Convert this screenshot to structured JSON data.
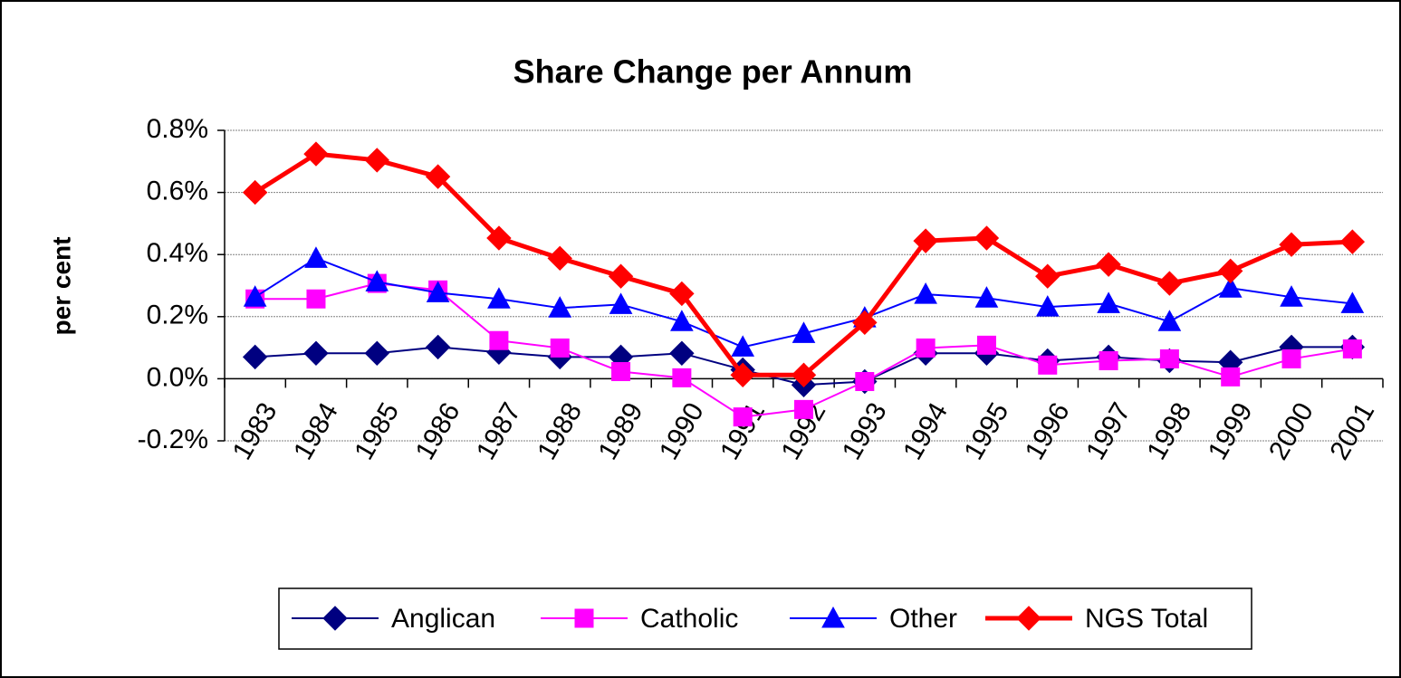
{
  "chart_data": {
    "type": "line",
    "title": "Share Change per Annum",
    "y_label": "per cent",
    "categories": [
      "1983",
      "1984",
      "1985",
      "1986",
      "1987",
      "1988",
      "1989",
      "1990",
      "1991",
      "1992",
      "1993",
      "1994",
      "1995",
      "1996",
      "1997",
      "1998",
      "1999",
      "2000",
      "2001"
    ],
    "series": [
      {
        "name": "Anglican",
        "color": "#000080",
        "marker": "diamond",
        "line_width": 2,
        "values": [
          0.07,
          0.082,
          0.082,
          0.102,
          0.085,
          0.07,
          0.07,
          0.082,
          0.029,
          -0.02,
          -0.009,
          0.082,
          0.082,
          0.058,
          0.07,
          0.058,
          0.053,
          0.102,
          0.102
        ]
      },
      {
        "name": "Catholic",
        "color": "#ff00ff",
        "marker": "square",
        "line_width": 2,
        "values": [
          0.257,
          0.257,
          0.307,
          0.286,
          0.123,
          0.099,
          0.023,
          0.003,
          -0.123,
          -0.099,
          -0.009,
          0.099,
          0.108,
          0.044,
          0.058,
          0.064,
          0.006,
          0.064,
          0.096
        ]
      },
      {
        "name": "Other",
        "color": "#0000ff",
        "marker": "triangle",
        "line_width": 2,
        "values": [
          0.263,
          0.388,
          0.312,
          0.277,
          0.257,
          0.228,
          0.239,
          0.184,
          0.102,
          0.146,
          0.196,
          0.272,
          0.26,
          0.231,
          0.242,
          0.184,
          0.292,
          0.263,
          0.242
        ]
      },
      {
        "name": "NGS Total",
        "color": "#ff0000",
        "marker": "diamond",
        "line_width": 5,
        "values": [
          0.6,
          0.724,
          0.704,
          0.651,
          0.453,
          0.388,
          0.33,
          0.274,
          0.012,
          0.012,
          0.181,
          0.444,
          0.453,
          0.33,
          0.368,
          0.307,
          0.347,
          0.432,
          0.441
        ]
      }
    ],
    "ylim": [
      -0.2,
      0.8
    ],
    "yticks": [
      {
        "value": -0.2,
        "label": "-0.2%"
      },
      {
        "value": 0,
        "label": "0.0%"
      },
      {
        "value": 0.2,
        "label": "0.2%"
      },
      {
        "value": 0.4,
        "label": "0.4%"
      },
      {
        "value": 0.6,
        "label": "0.6%"
      },
      {
        "value": 0.8,
        "label": "0.8%"
      }
    ],
    "grid": true,
    "legend": "bottom"
  }
}
